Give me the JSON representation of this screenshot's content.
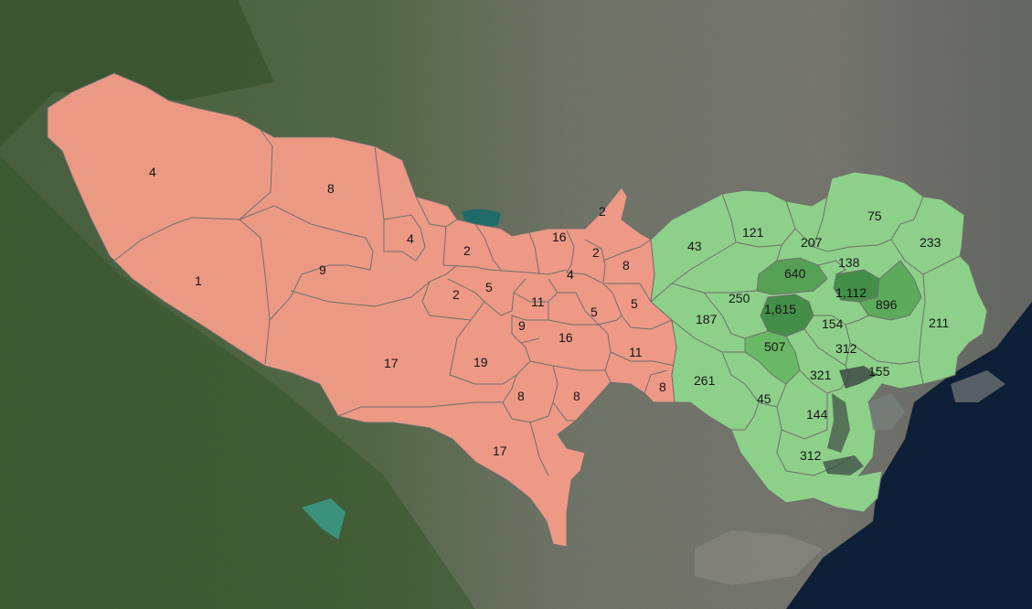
{
  "colors": {
    "western": "#f29b87",
    "eastern": "#8fd48a",
    "eastern_dark": "#4f9a4f",
    "eastern_mid": "#62b061",
    "terrain_forest": "#3c5b2f",
    "terrain_urban": "#7b7a70",
    "water": "#0d1d33"
  },
  "regions": [
    {
      "id": "w-far-north",
      "value": "4"
    },
    {
      "id": "w-north",
      "value": "8"
    },
    {
      "id": "w-south-west",
      "value": "1"
    },
    {
      "id": "w-central",
      "value": "9"
    },
    {
      "id": "w-big",
      "value": "17"
    },
    {
      "id": "w-south",
      "value": "17"
    },
    {
      "id": "w-a",
      "value": "4"
    },
    {
      "id": "w-b",
      "value": "2"
    },
    {
      "id": "w-c",
      "value": "16"
    },
    {
      "id": "w-d",
      "value": "2"
    },
    {
      "id": "w-e",
      "value": "2"
    },
    {
      "id": "w-f",
      "value": "8"
    },
    {
      "id": "w-g",
      "value": "4"
    },
    {
      "id": "w-h",
      "value": "5"
    },
    {
      "id": "w-i",
      "value": "2"
    },
    {
      "id": "w-j",
      "value": "11"
    },
    {
      "id": "w-k",
      "value": "5"
    },
    {
      "id": "w-l",
      "value": "5"
    },
    {
      "id": "w-m",
      "value": "9"
    },
    {
      "id": "w-n",
      "value": "16"
    },
    {
      "id": "w-o",
      "value": "11"
    },
    {
      "id": "w-p",
      "value": "19"
    },
    {
      "id": "w-q",
      "value": "8"
    },
    {
      "id": "w-r",
      "value": "8"
    },
    {
      "id": "w-s",
      "value": "8"
    },
    {
      "id": "e-a",
      "value": "43"
    },
    {
      "id": "e-b",
      "value": "121"
    },
    {
      "id": "e-c",
      "value": "207"
    },
    {
      "id": "e-d",
      "value": "75"
    },
    {
      "id": "e-e",
      "value": "233"
    },
    {
      "id": "e-f",
      "value": "640"
    },
    {
      "id": "e-g",
      "value": "138"
    },
    {
      "id": "e-h",
      "value": "250"
    },
    {
      "id": "e-i",
      "value": "1,112"
    },
    {
      "id": "e-j",
      "value": "896"
    },
    {
      "id": "e-k",
      "value": "1,615"
    },
    {
      "id": "e-l",
      "value": "187"
    },
    {
      "id": "e-m",
      "value": "154"
    },
    {
      "id": "e-n",
      "value": "211"
    },
    {
      "id": "e-o",
      "value": "507"
    },
    {
      "id": "e-p",
      "value": "312"
    },
    {
      "id": "e-q",
      "value": "261"
    },
    {
      "id": "e-r",
      "value": "321"
    },
    {
      "id": "e-s",
      "value": "155"
    },
    {
      "id": "e-t",
      "value": "45"
    },
    {
      "id": "e-u",
      "value": "144"
    },
    {
      "id": "e-v",
      "value": "312"
    }
  ]
}
